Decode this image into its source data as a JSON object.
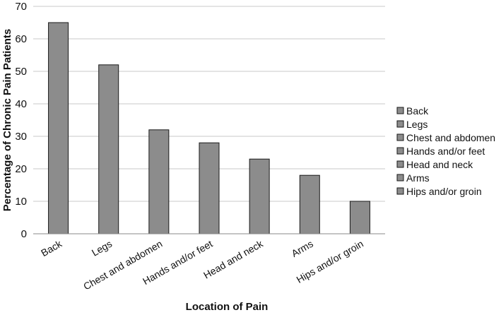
{
  "chart_data": {
    "type": "bar",
    "categories": [
      "Back",
      "Legs",
      "Chest and abdomen",
      "Hands and/or feet",
      "Head and neck",
      "Arms",
      "Hips and/or groin"
    ],
    "values": [
      65,
      52,
      32,
      28,
      23,
      18,
      10
    ],
    "xlabel": "Location of Pain",
    "ylabel": "Percentage of Chronic Pain Patients",
    "ylim": [
      0,
      70
    ],
    "yticks": [
      0,
      10,
      20,
      30,
      40,
      50,
      60,
      70
    ],
    "grid": true,
    "legend_position": "right",
    "legend": [
      "Back",
      "Legs",
      "Chest and abdomen",
      "Hands and/or feet",
      "Head and neck",
      "Arms",
      "Hips and/or groin"
    ],
    "colors": {
      "bar_fill": "#8c8c8c",
      "bar_stroke": "#1a1a1a",
      "grid": "#c8c8c8",
      "axis": "#8a8a8a"
    }
  }
}
